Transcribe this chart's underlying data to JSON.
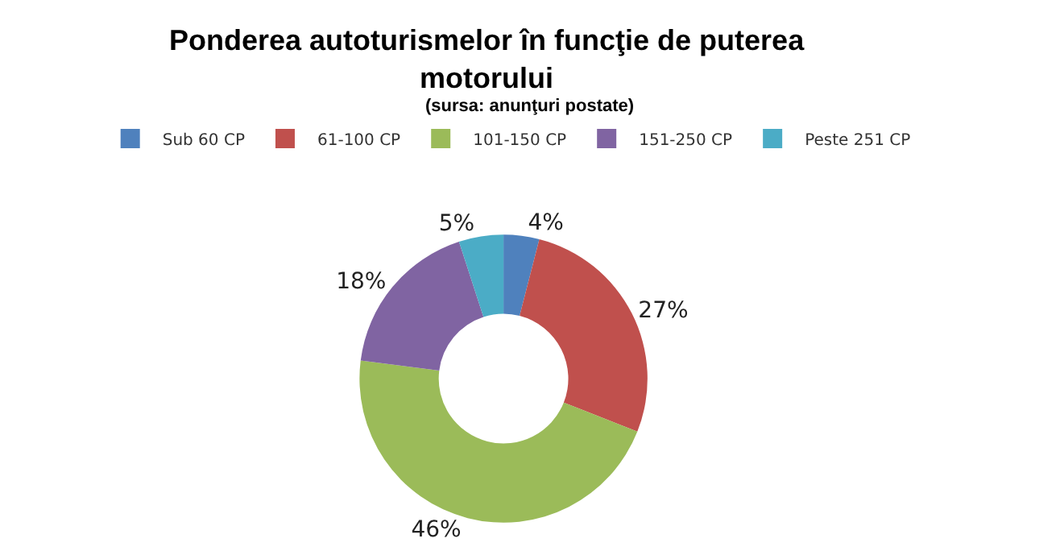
{
  "chart_data": {
    "type": "donut",
    "title": "Ponderea autoturismelor în funcţie de puterea\nmotorului",
    "subtitle": "(sursa: anunţuri postate)",
    "categories": [
      "Sub 60 CP",
      "61-100 CP",
      "101-150 CP",
      "151-250 CP",
      "Peste 251 CP"
    ],
    "values": [
      4,
      27,
      46,
      18,
      5
    ],
    "value_labels": [
      "4%",
      "27%",
      "46%",
      "18%",
      "5%"
    ],
    "colors": [
      "#4f81bd",
      "#c0504d",
      "#9bbb59",
      "#8064a2",
      "#4bacc6"
    ],
    "legend": "top"
  }
}
